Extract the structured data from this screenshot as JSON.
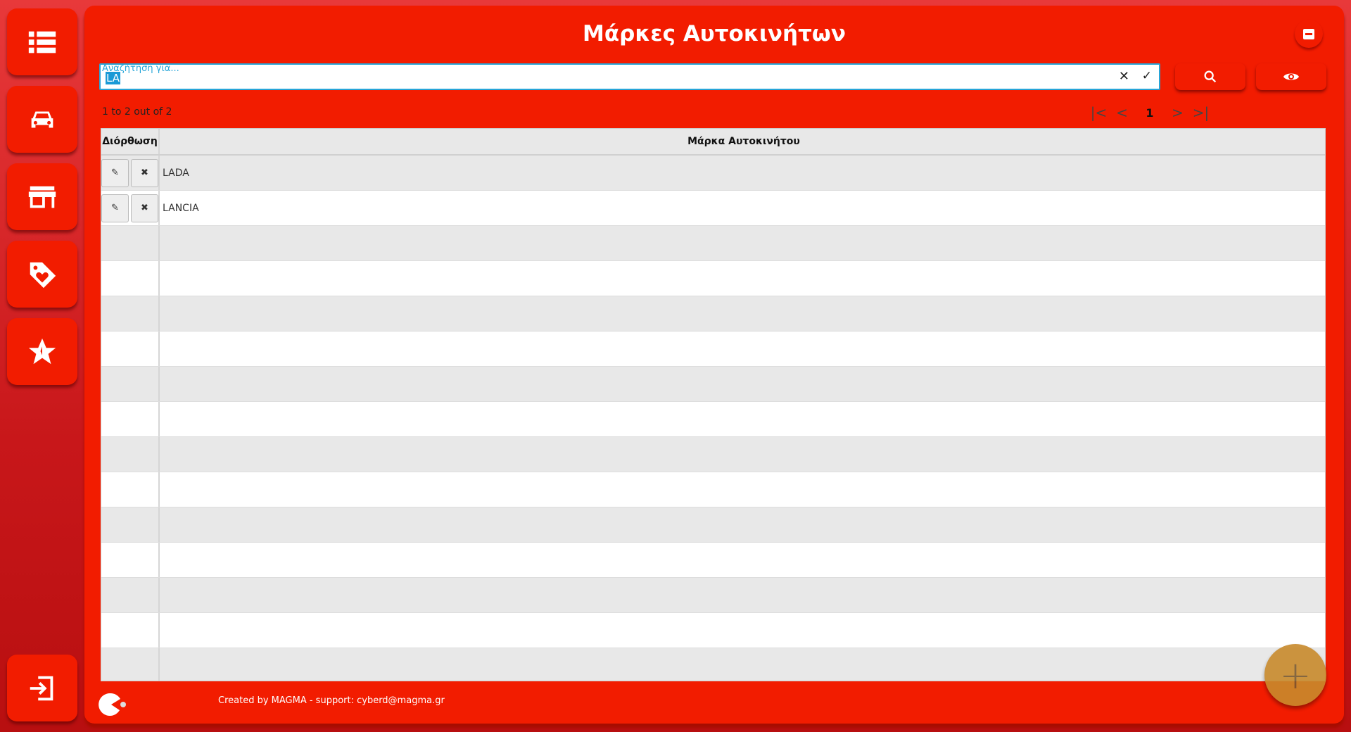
{
  "sidebar": {
    "items": [
      {
        "icon": "list-icon"
      },
      {
        "icon": "car-icon"
      },
      {
        "icon": "store-icon"
      },
      {
        "icon": "tag-heart-icon"
      },
      {
        "icon": "star-icon"
      }
    ],
    "logout": {
      "icon": "sign-in-icon"
    }
  },
  "header": {
    "title": "Μάρκες Αυτοκινήτων"
  },
  "search": {
    "placeholder": "Αναζήτηση για...",
    "value": "LA",
    "clear": "✕",
    "confirm": "✓"
  },
  "pagination": {
    "summary": "1 to 2 out of 2",
    "first": "|<",
    "prev": "<",
    "page": "1",
    "next": ">",
    "last": ">|"
  },
  "table": {
    "columns": [
      "Διόρθωση",
      "Μάρκα Αυτοκινήτου"
    ],
    "rows": [
      {
        "brand": "LADA"
      },
      {
        "brand": "LANCIA"
      }
    ],
    "edit_icon": "✎",
    "delete_icon": "✖"
  },
  "fab": {
    "label": "+"
  },
  "footer": {
    "text": "Created by MAGMA - support: cyberd@magma.gr"
  },
  "colors": {
    "primary": "#f21c00",
    "accent": "#27a5d8",
    "fab": "#c88a2c"
  }
}
